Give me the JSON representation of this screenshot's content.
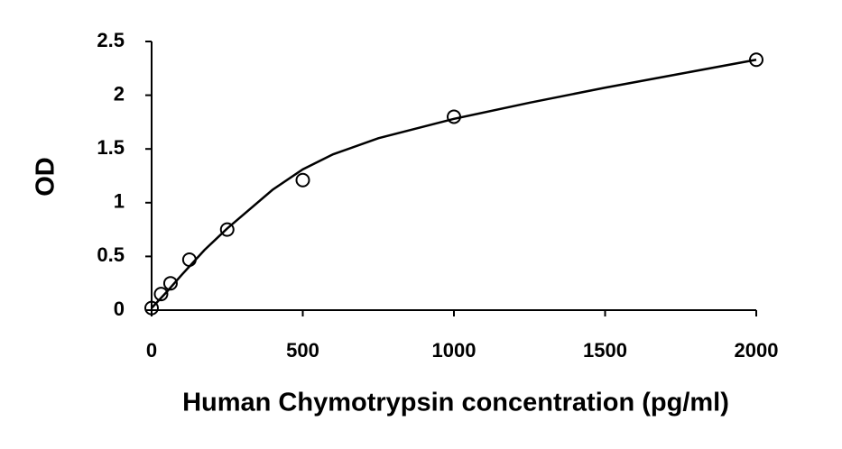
{
  "chart_data": {
    "type": "scatter",
    "x_label": "Human Chymotrypsin concentration (pg/ml)",
    "y_label": "OD",
    "x": [
      0,
      31.25,
      62.5,
      125,
      250,
      500,
      1000,
      2000
    ],
    "values": [
      0.02,
      0.15,
      0.25,
      0.47,
      0.75,
      1.21,
      1.8,
      2.33
    ],
    "color": "#000000",
    "fit_x": [
      0,
      50,
      100,
      175,
      250,
      400,
      500,
      600,
      750,
      1000,
      1250,
      1500,
      1750,
      2000
    ],
    "fit_values": [
      0.02,
      0.17,
      0.33,
      0.56,
      0.76,
      1.12,
      1.31,
      1.45,
      1.6,
      1.78,
      1.93,
      2.07,
      2.2,
      2.33
    ],
    "xlim": [
      0,
      2000
    ],
    "xticks": [
      0,
      500,
      1000,
      1500,
      2000
    ],
    "ylim": [
      0,
      2.5
    ],
    "yticks": [
      0,
      0.5,
      1,
      1.5,
      2,
      2.5
    ]
  }
}
